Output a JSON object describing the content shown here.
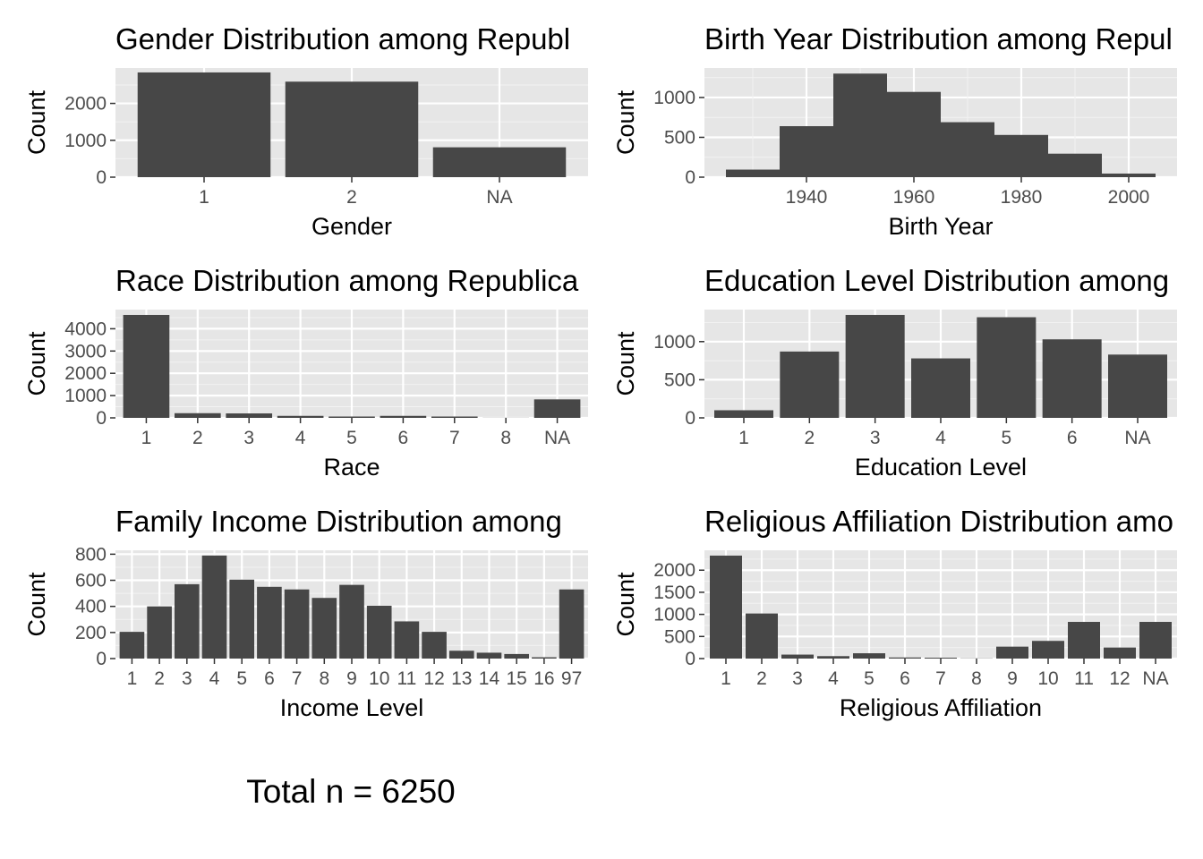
{
  "chart_data": [
    {
      "type": "bar",
      "title": "Gender Distribution among Republ",
      "xlabel": "Gender",
      "ylabel": "Count",
      "categories": [
        "1",
        "2",
        "NA"
      ],
      "values": [
        2840,
        2590,
        810
      ],
      "ylim": [
        0,
        2960
      ],
      "yticks": [
        0,
        1000,
        2000
      ],
      "grid": true,
      "bar_color": "#474747",
      "panel_bg": "#e6e6e6"
    },
    {
      "type": "bar",
      "histogram": true,
      "title": "Birth Year Distribution among Repul",
      "xlabel": "Birth Year",
      "ylabel": "Count",
      "bins": [
        [
          1925,
          1935
        ],
        [
          1935,
          1945
        ],
        [
          1945,
          1955
        ],
        [
          1955,
          1965
        ],
        [
          1965,
          1975
        ],
        [
          1975,
          1985
        ],
        [
          1985,
          1995
        ],
        [
          1995,
          2005
        ]
      ],
      "values": [
        95,
        640,
        1300,
        1070,
        690,
        530,
        295,
        45
      ],
      "xlim": [
        1921,
        2009
      ],
      "ylim": [
        0,
        1370
      ],
      "xticks": [
        1940,
        1960,
        1980,
        2000
      ],
      "yticks": [
        0,
        500,
        1000
      ],
      "grid": true,
      "bar_color": "#474747",
      "panel_bg": "#e6e6e6"
    },
    {
      "type": "bar",
      "title": "Race Distribution among Republica",
      "xlabel": "Race",
      "ylabel": "Count",
      "categories": [
        "1",
        "2",
        "3",
        "4",
        "5",
        "6",
        "7",
        "8",
        "NA"
      ],
      "values": [
        4620,
        210,
        200,
        90,
        60,
        90,
        60,
        5,
        830
      ],
      "ylim": [
        0,
        4860
      ],
      "yticks": [
        0,
        1000,
        2000,
        3000,
        4000
      ],
      "grid": true,
      "bar_color": "#474747",
      "panel_bg": "#e6e6e6"
    },
    {
      "type": "bar",
      "title": "Education Level Distribution among",
      "xlabel": "Education Level",
      "ylabel": "Count",
      "categories": [
        "1",
        "2",
        "3",
        "4",
        "5",
        "6",
        "NA"
      ],
      "values": [
        100,
        870,
        1350,
        780,
        1320,
        1030,
        830
      ],
      "ylim": [
        0,
        1420
      ],
      "yticks": [
        0,
        500,
        1000
      ],
      "grid": true,
      "bar_color": "#474747",
      "panel_bg": "#e6e6e6"
    },
    {
      "type": "bar",
      "title": "Family Income Distribution among",
      "xlabel": "Income Level",
      "ylabel": "Count",
      "categories": [
        "1",
        "2",
        "3",
        "4",
        "5",
        "6",
        "7",
        "8",
        "9",
        "10",
        "11",
        "12",
        "13",
        "14",
        "15",
        "16",
        "97"
      ],
      "values": [
        205,
        400,
        570,
        790,
        605,
        550,
        530,
        465,
        565,
        405,
        285,
        205,
        60,
        45,
        35,
        10,
        530
      ],
      "ylim": [
        0,
        830
      ],
      "yticks": [
        0,
        200,
        400,
        600,
        800
      ],
      "grid": true,
      "bar_color": "#474747",
      "panel_bg": "#e6e6e6"
    },
    {
      "type": "bar",
      "title": "Religious Affiliation Distribution amo",
      "xlabel": "Religious Affiliation",
      "ylabel": "Count",
      "categories": [
        "1",
        "2",
        "3",
        "4",
        "5",
        "6",
        "7",
        "8",
        "9",
        "10",
        "11",
        "12",
        "NA"
      ],
      "values": [
        2330,
        1020,
        90,
        55,
        120,
        25,
        20,
        5,
        270,
        400,
        830,
        250,
        830
      ],
      "ylim": [
        0,
        2450
      ],
      "yticks": [
        0,
        500,
        1000,
        1500,
        2000
      ],
      "grid": true,
      "bar_color": "#474747",
      "panel_bg": "#e6e6e6"
    }
  ],
  "footer": "Total n = 6250"
}
